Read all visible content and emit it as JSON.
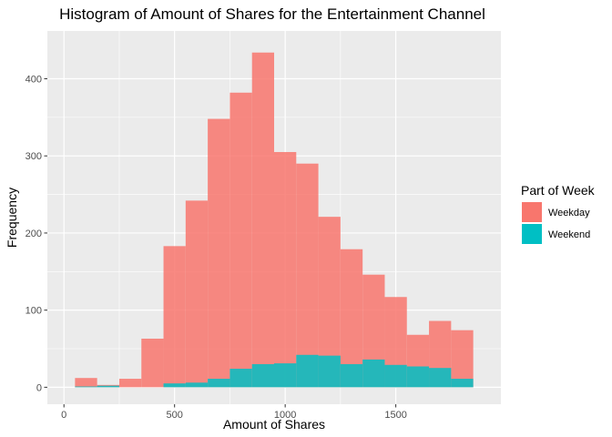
{
  "chart_data": {
    "type": "bar",
    "title": "Histogram of Amount of Shares for the Entertainment Channel",
    "xlabel": "Amount of Shares",
    "ylabel": "Frequency",
    "xlim": [
      -75,
      1975
    ],
    "ylim": [
      -22,
      462
    ],
    "x_ticks": [
      0,
      500,
      1000,
      1500
    ],
    "y_ticks": [
      0,
      100,
      200,
      300,
      400
    ],
    "x_tick_labels": [
      "0",
      "500",
      "1000",
      "1500"
    ],
    "y_tick_labels": [
      "0",
      "100",
      "200",
      "300",
      "400"
    ],
    "grid": true,
    "bin_width": 100,
    "bin_centers": [
      100,
      200,
      300,
      400,
      500,
      600,
      700,
      800,
      900,
      1000,
      1100,
      1200,
      1300,
      1400,
      1500,
      1600,
      1700,
      1800
    ],
    "legend": {
      "title": "Part of Week",
      "position": "right"
    },
    "series": [
      {
        "name": "Weekday",
        "color": "#F8766D",
        "values": [
          12,
          3,
          11,
          63,
          183,
          242,
          348,
          382,
          434,
          305,
          290,
          221,
          179,
          146,
          117,
          68,
          86,
          74
        ]
      },
      {
        "name": "Weekend",
        "color": "#00BFC4",
        "values": [
          1,
          2,
          0,
          0,
          5,
          6,
          11,
          24,
          30,
          31,
          42,
          41,
          30,
          36,
          29,
          27,
          25,
          11
        ]
      }
    ]
  }
}
